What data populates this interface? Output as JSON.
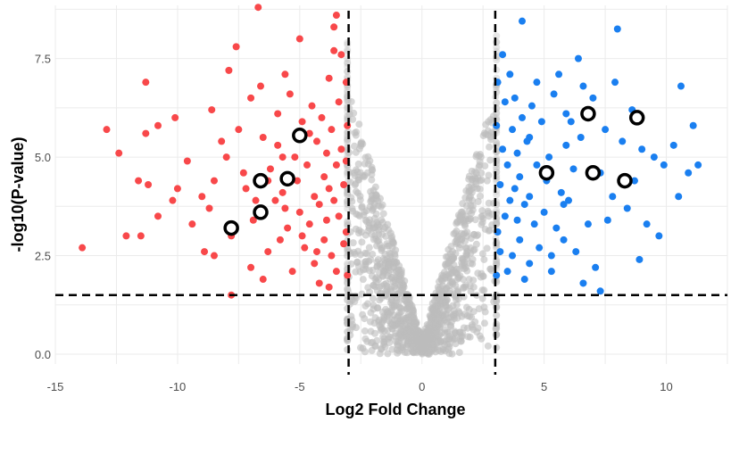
{
  "chart_data": {
    "type": "scatter",
    "subtype": "volcano",
    "title": "",
    "xlabel": "Log2 Fold Change",
    "ylabel": "-log10(P-value)",
    "xlim": [
      -15,
      12.5
    ],
    "ylim": [
      -0.25,
      8.85
    ],
    "x_ticks": [
      -15,
      -10,
      -5,
      0,
      5,
      10
    ],
    "x_tick_labels": [
      "-15",
      "-10",
      "-5",
      "0",
      "5",
      "10"
    ],
    "y_ticks": [
      0,
      2.5,
      5,
      7.5
    ],
    "y_tick_labels": [
      "0.0",
      "2.5",
      "5.0",
      "7.5"
    ],
    "grid": true,
    "legend": "none",
    "thresholds": {
      "log2fc": [
        -3,
        3
      ],
      "neg_log10_p": 1.5
    },
    "colors": {
      "down": "#f8484a",
      "up": "#1a7ff0",
      "ns": "#bdbdbd",
      "highlight_stroke": "#000000",
      "highlight_fill": "#ffffff"
    },
    "series": [
      {
        "category": "down",
        "points": [
          [
            -13.9,
            2.7
          ],
          [
            -12.9,
            5.7
          ],
          [
            -12.4,
            5.1
          ],
          [
            -12.1,
            3.0
          ],
          [
            -11.5,
            3.0
          ],
          [
            -11.3,
            5.6
          ],
          [
            -11.3,
            6.9
          ],
          [
            -11.2,
            4.3
          ],
          [
            -11.6,
            4.4
          ],
          [
            -10.8,
            3.5
          ],
          [
            -10.8,
            5.8
          ],
          [
            -10.1,
            6.0
          ],
          [
            -10.0,
            4.2
          ],
          [
            -10.2,
            3.9
          ],
          [
            -9.6,
            4.9
          ],
          [
            -9.4,
            3.3
          ],
          [
            -9.0,
            4.0
          ],
          [
            -8.9,
            2.6
          ],
          [
            -8.7,
            3.7
          ],
          [
            -8.6,
            6.2
          ],
          [
            -8.5,
            2.5
          ],
          [
            -8.5,
            4.4
          ],
          [
            -8.2,
            5.4
          ],
          [
            -7.9,
            7.2
          ],
          [
            -7.8,
            3.0
          ],
          [
            -7.8,
            1.5
          ],
          [
            -7.6,
            7.8
          ],
          [
            -7.5,
            5.7
          ],
          [
            -7.3,
            4.6
          ],
          [
            -7.0,
            6.5
          ],
          [
            -7.0,
            2.2
          ],
          [
            -6.9,
            3.4
          ],
          [
            -6.7,
            8.8
          ],
          [
            -6.6,
            6.8
          ],
          [
            -6.5,
            5.5
          ],
          [
            -6.5,
            1.9
          ],
          [
            -6.3,
            2.6
          ],
          [
            -6.2,
            4.7
          ],
          [
            -6.0,
            3.9
          ],
          [
            -5.9,
            5.3
          ],
          [
            -5.9,
            6.1
          ],
          [
            -5.8,
            2.9
          ],
          [
            -5.7,
            4.1
          ],
          [
            -5.6,
            7.1
          ],
          [
            -5.5,
            3.2
          ],
          [
            -5.4,
            6.6
          ],
          [
            -5.3,
            2.1
          ],
          [
            -5.2,
            5.0
          ],
          [
            -5.1,
            4.4
          ],
          [
            -5.0,
            3.6
          ],
          [
            -5.0,
            8.0
          ],
          [
            -4.9,
            5.9
          ],
          [
            -4.8,
            2.7
          ],
          [
            -4.7,
            4.8
          ],
          [
            -4.6,
            3.3
          ],
          [
            -4.5,
            6.3
          ],
          [
            -4.4,
            4.0
          ],
          [
            -4.4,
            2.3
          ],
          [
            -4.3,
            5.4
          ],
          [
            -4.2,
            3.8
          ],
          [
            -4.2,
            1.8
          ],
          [
            -4.1,
            6.0
          ],
          [
            -4.0,
            4.5
          ],
          [
            -4.0,
            2.9
          ],
          [
            -3.9,
            5.1
          ],
          [
            -3.9,
            3.4
          ],
          [
            -3.8,
            7.0
          ],
          [
            -3.8,
            4.2
          ],
          [
            -3.7,
            2.5
          ],
          [
            -3.7,
            5.7
          ],
          [
            -3.6,
            3.9
          ],
          [
            -3.6,
            8.3
          ],
          [
            -3.5,
            4.8
          ],
          [
            -3.5,
            2.1
          ],
          [
            -3.4,
            6.4
          ],
          [
            -3.4,
            3.5
          ],
          [
            -3.3,
            7.6
          ],
          [
            -3.3,
            5.2
          ],
          [
            -3.2,
            4.3
          ],
          [
            -3.2,
            2.8
          ],
          [
            -3.1,
            6.9
          ],
          [
            -3.1,
            3.1
          ],
          [
            -3.1,
            4.9
          ],
          [
            -3.05,
            5.8
          ],
          [
            -3.05,
            2.0
          ],
          [
            -3.5,
            8.6
          ],
          [
            -3.6,
            7.7
          ],
          [
            -4.6,
            5.6
          ],
          [
            -5.6,
            3.7
          ],
          [
            -6.8,
            3.9
          ],
          [
            -7.2,
            4.2
          ],
          [
            -8.0,
            5.0
          ],
          [
            -4.9,
            3.0
          ],
          [
            -5.7,
            5.0
          ],
          [
            -6.3,
            4.4
          ],
          [
            -3.8,
            1.7
          ],
          [
            -4.3,
            2.6
          ]
        ]
      },
      {
        "category": "up",
        "points": [
          [
            3.05,
            2.0
          ],
          [
            3.05,
            5.8
          ],
          [
            3.1,
            3.1
          ],
          [
            3.1,
            6.9
          ],
          [
            3.2,
            4.3
          ],
          [
            3.2,
            2.6
          ],
          [
            3.3,
            5.2
          ],
          [
            3.3,
            7.6
          ],
          [
            3.4,
            3.5
          ],
          [
            3.4,
            6.4
          ],
          [
            3.5,
            2.1
          ],
          [
            3.5,
            4.8
          ],
          [
            3.6,
            3.9
          ],
          [
            3.6,
            7.1
          ],
          [
            3.7,
            5.7
          ],
          [
            3.7,
            2.5
          ],
          [
            3.8,
            4.2
          ],
          [
            3.8,
            6.5
          ],
          [
            3.9,
            3.4
          ],
          [
            3.9,
            5.1
          ],
          [
            4.0,
            2.9
          ],
          [
            4.0,
            4.5
          ],
          [
            4.1,
            6.0
          ],
          [
            4.1,
            8.45
          ],
          [
            4.2,
            3.8
          ],
          [
            4.2,
            1.9
          ],
          [
            4.3,
            5.4
          ],
          [
            4.4,
            2.3
          ],
          [
            4.4,
            4.0
          ],
          [
            4.5,
            6.3
          ],
          [
            4.6,
            3.3
          ],
          [
            4.7,
            4.8
          ],
          [
            4.8,
            2.7
          ],
          [
            4.9,
            5.9
          ],
          [
            5.0,
            3.6
          ],
          [
            5.1,
            4.4
          ],
          [
            5.2,
            5.0
          ],
          [
            5.3,
            2.1
          ],
          [
            5.4,
            6.6
          ],
          [
            5.5,
            3.2
          ],
          [
            5.6,
            7.1
          ],
          [
            5.7,
            4.1
          ],
          [
            5.8,
            2.9
          ],
          [
            5.9,
            6.1
          ],
          [
            5.9,
            5.3
          ],
          [
            6.0,
            3.9
          ],
          [
            6.2,
            4.7
          ],
          [
            6.3,
            2.6
          ],
          [
            6.4,
            7.5
          ],
          [
            6.5,
            5.5
          ],
          [
            6.6,
            6.8
          ],
          [
            6.8,
            3.3
          ],
          [
            7.0,
            6.5
          ],
          [
            7.1,
            2.2
          ],
          [
            7.3,
            4.6
          ],
          [
            7.5,
            5.7
          ],
          [
            7.6,
            3.4
          ],
          [
            7.8,
            4.0
          ],
          [
            7.9,
            6.9
          ],
          [
            8.0,
            8.25
          ],
          [
            8.2,
            5.4
          ],
          [
            8.4,
            3.7
          ],
          [
            8.6,
            6.2
          ],
          [
            8.7,
            4.4
          ],
          [
            9.0,
            5.2
          ],
          [
            9.2,
            3.3
          ],
          [
            9.5,
            5.0
          ],
          [
            9.9,
            4.8
          ],
          [
            10.3,
            5.3
          ],
          [
            10.5,
            4.0
          ],
          [
            10.6,
            6.8
          ],
          [
            10.9,
            4.6
          ],
          [
            11.1,
            5.8
          ],
          [
            11.3,
            4.8
          ],
          [
            7.3,
            1.6
          ],
          [
            6.6,
            1.8
          ],
          [
            9.7,
            3.0
          ],
          [
            8.9,
            2.4
          ],
          [
            5.3,
            2.5
          ],
          [
            6.1,
            5.9
          ],
          [
            4.7,
            6.9
          ],
          [
            5.8,
            3.8
          ],
          [
            4.4,
            5.5
          ]
        ]
      }
    ],
    "highlighted": [
      [
        -7.8,
        3.2
      ],
      [
        -6.6,
        3.6
      ],
      [
        -6.6,
        4.4
      ],
      [
        -5.5,
        4.45
      ],
      [
        -5.0,
        5.55
      ],
      [
        5.1,
        4.6
      ],
      [
        6.8,
        6.1
      ],
      [
        7.0,
        4.6
      ],
      [
        8.3,
        4.4
      ],
      [
        8.8,
        6.0
      ]
    ]
  }
}
